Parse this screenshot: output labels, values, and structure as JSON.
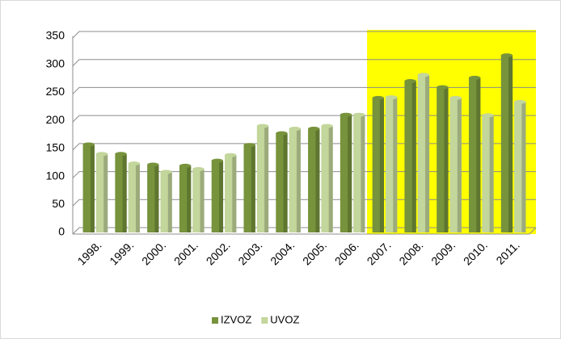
{
  "chart_data": {
    "type": "bar",
    "categories": [
      "1998.",
      "1999.",
      "2000.",
      "2001.",
      "2002.",
      "2003.",
      "2004.",
      "2005.",
      "2006.",
      "2007.",
      "2008.",
      "2009.",
      "2010.",
      "2011."
    ],
    "series": [
      {
        "name": "IZVOZ",
        "color": "#77933c",
        "values": [
          157,
          140,
          121,
          119,
          128,
          156,
          177,
          185,
          210,
          240,
          270,
          259,
          276,
          316
        ]
      },
      {
        "name": "UVOZ",
        "color": "#c3d69b",
        "values": [
          140,
          123,
          108,
          113,
          138,
          190,
          185,
          190,
          210,
          241,
          281,
          240,
          209,
          233
        ]
      }
    ],
    "ylim": [
      0,
      350
    ],
    "yticks": [
      0,
      50,
      100,
      150,
      200,
      250,
      300,
      350
    ],
    "grid": true,
    "legend": "bottom",
    "highlight_from": "2007.",
    "highlight_color": "#ffff00"
  }
}
